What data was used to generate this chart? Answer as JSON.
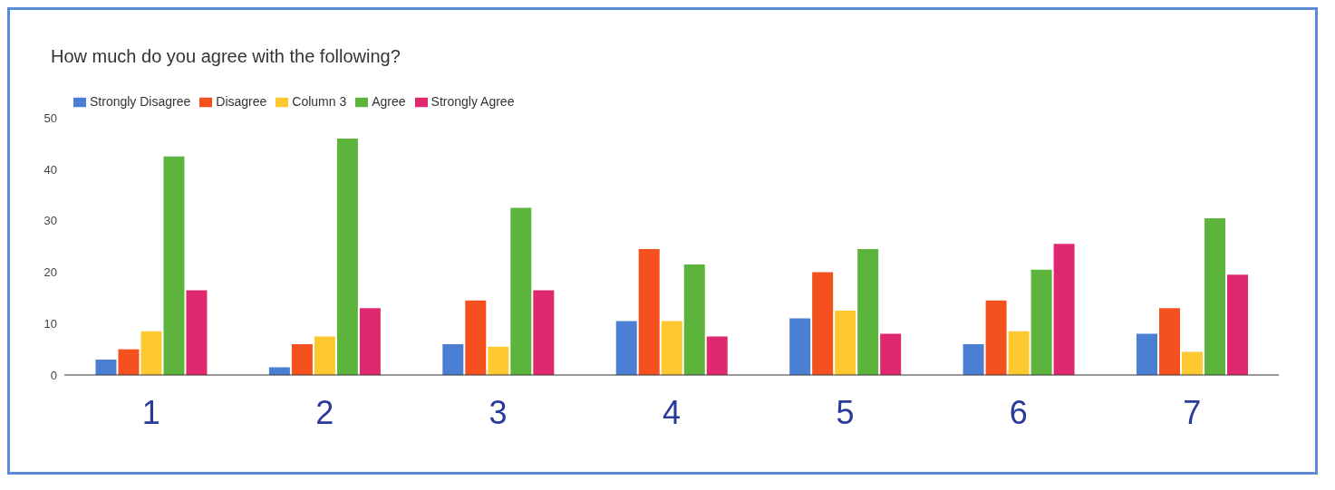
{
  "chart_data": {
    "type": "bar",
    "title": "How much do you agree with the following?",
    "categories": [
      "1",
      "2",
      "3",
      "4",
      "5",
      "6",
      "7"
    ],
    "series": [
      {
        "name": "Strongly Disagree",
        "color": "#4a7fd4",
        "values": [
          3,
          1.5,
          6,
          10.5,
          11,
          6,
          8
        ]
      },
      {
        "name": "Disagree",
        "color": "#f4511e",
        "values": [
          5,
          6,
          14.5,
          24.5,
          20,
          14.5,
          13
        ]
      },
      {
        "name": "Column 3",
        "color": "#fdc830",
        "values": [
          8.5,
          7.5,
          5.5,
          10.5,
          12.5,
          8.5,
          4.5
        ]
      },
      {
        "name": "Agree",
        "color": "#5cb43c",
        "values": [
          42.5,
          46,
          32.5,
          21.5,
          24.5,
          20.5,
          30.5
        ]
      },
      {
        "name": "Strongly Agree",
        "color": "#e0286e",
        "values": [
          16.5,
          13,
          16.5,
          7.5,
          8,
          25.5,
          19.5
        ]
      }
    ],
    "ylim": [
      0,
      50
    ],
    "yticks": [
      0,
      10,
      20,
      30,
      40,
      50
    ],
    "grid": false,
    "legend": "top left"
  }
}
